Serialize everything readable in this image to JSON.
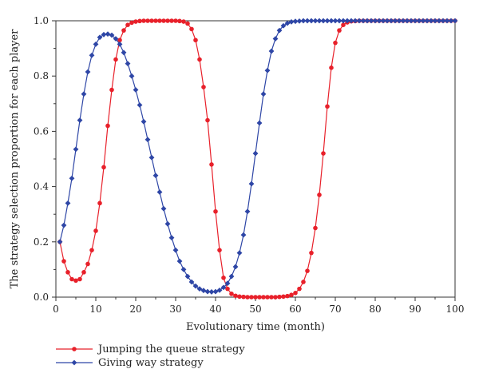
{
  "chart_data": {
    "type": "line",
    "title": "",
    "xlabel": "Evolutionary time (month)",
    "ylabel": "The strategy selection proportion for each player",
    "xlim": [
      0,
      100
    ],
    "ylim": [
      0.0,
      1.0
    ],
    "xticks": [
      "0",
      "10",
      "20",
      "30",
      "40",
      "50",
      "60",
      "70",
      "80",
      "90",
      "100"
    ],
    "yticks": [
      "0.0",
      "0.2",
      "0.4",
      "0.6",
      "0.8",
      "1.0"
    ],
    "grid": false,
    "legend_position": "bottom-left, below plot",
    "x": [
      1,
      2,
      3,
      4,
      5,
      6,
      7,
      8,
      9,
      10,
      11,
      12,
      13,
      14,
      15,
      16,
      17,
      18,
      19,
      20,
      21,
      22,
      23,
      24,
      25,
      26,
      27,
      28,
      29,
      30,
      31,
      32,
      33,
      34,
      35,
      36,
      37,
      38,
      39,
      40,
      41,
      42,
      43,
      44,
      45,
      46,
      47,
      48,
      49,
      50,
      51,
      52,
      53,
      54,
      55,
      56,
      57,
      58,
      59,
      60,
      61,
      62,
      63,
      64,
      65,
      66,
      67,
      68,
      69,
      70,
      71,
      72,
      73,
      74,
      75,
      76,
      77,
      78,
      79,
      80,
      81,
      82,
      83,
      84,
      85,
      86,
      87,
      88,
      89,
      90,
      91,
      92,
      93,
      94,
      95,
      96,
      97,
      98,
      99,
      100
    ],
    "series": [
      {
        "name": "Jumping the queue strategy",
        "color": "#e8202a",
        "marker": "circle",
        "values": [
          0.2,
          0.13,
          0.09,
          0.065,
          0.06,
          0.065,
          0.09,
          0.12,
          0.17,
          0.24,
          0.34,
          0.47,
          0.62,
          0.75,
          0.86,
          0.93,
          0.965,
          0.985,
          0.993,
          0.997,
          0.999,
          1.0,
          1.0,
          1.0,
          1.0,
          1.0,
          1.0,
          1.0,
          1.0,
          1.0,
          0.999,
          0.997,
          0.99,
          0.97,
          0.93,
          0.86,
          0.76,
          0.64,
          0.48,
          0.31,
          0.17,
          0.07,
          0.03,
          0.012,
          0.005,
          0.002,
          0.001,
          0.0,
          0.0,
          0.0,
          0.0,
          0.0,
          0.0,
          0.0,
          0.0,
          0.001,
          0.002,
          0.004,
          0.008,
          0.015,
          0.03,
          0.055,
          0.095,
          0.16,
          0.25,
          0.37,
          0.52,
          0.69,
          0.83,
          0.92,
          0.965,
          0.985,
          0.994,
          0.998,
          0.999,
          1.0,
          1.0,
          1.0,
          1.0,
          1.0,
          1.0,
          1.0,
          1.0,
          1.0,
          1.0,
          1.0,
          1.0,
          1.0,
          1.0,
          1.0,
          1.0,
          1.0,
          1.0,
          1.0,
          1.0,
          1.0,
          1.0,
          1.0,
          1.0,
          1.0
        ]
      },
      {
        "name": "Giving way strategy",
        "color": "#2e46a6",
        "marker": "diamond",
        "values": [
          0.2,
          0.26,
          0.34,
          0.43,
          0.535,
          0.64,
          0.735,
          0.815,
          0.875,
          0.915,
          0.94,
          0.95,
          0.952,
          0.948,
          0.935,
          0.915,
          0.885,
          0.845,
          0.8,
          0.75,
          0.695,
          0.635,
          0.57,
          0.505,
          0.44,
          0.38,
          0.32,
          0.265,
          0.215,
          0.17,
          0.13,
          0.1,
          0.075,
          0.055,
          0.04,
          0.03,
          0.024,
          0.02,
          0.019,
          0.02,
          0.025,
          0.035,
          0.05,
          0.075,
          0.11,
          0.16,
          0.225,
          0.31,
          0.41,
          0.52,
          0.63,
          0.735,
          0.82,
          0.89,
          0.935,
          0.965,
          0.982,
          0.991,
          0.996,
          0.998,
          0.999,
          1.0,
          1.0,
          1.0,
          1.0,
          1.0,
          1.0,
          1.0,
          1.0,
          1.0,
          1.0,
          1.0,
          1.0,
          1.0,
          1.0,
          1.0,
          1.0,
          1.0,
          1.0,
          1.0,
          1.0,
          1.0,
          1.0,
          1.0,
          1.0,
          1.0,
          1.0,
          1.0,
          1.0,
          1.0,
          1.0,
          1.0,
          1.0,
          1.0,
          1.0,
          1.0,
          1.0,
          1.0,
          1.0,
          1.0
        ]
      }
    ]
  }
}
